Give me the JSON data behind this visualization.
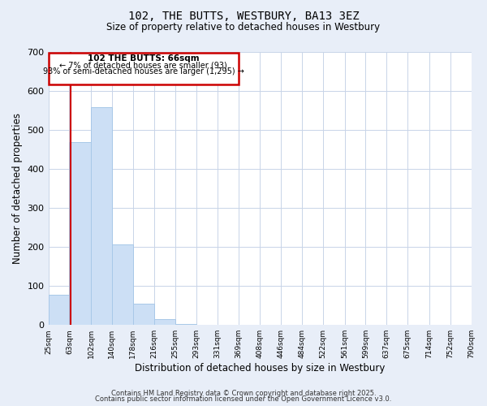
{
  "title": "102, THE BUTTS, WESTBURY, BA13 3EZ",
  "subtitle": "Size of property relative to detached houses in Westbury",
  "xlabel": "Distribution of detached houses by size in Westbury",
  "ylabel": "Number of detached properties",
  "bin_edges": [
    25,
    63,
    102,
    140,
    178,
    216,
    255,
    293,
    331,
    369,
    408,
    446,
    484,
    522,
    561,
    599,
    637,
    675,
    714,
    752,
    790
  ],
  "bar_heights": [
    78,
    468,
    558,
    207,
    55,
    14,
    2,
    0,
    0,
    0,
    0,
    0,
    0,
    0,
    0,
    0,
    0,
    0,
    0,
    0
  ],
  "bar_color": "#ccdff5",
  "bar_edge_color": "#a8c8e8",
  "vline_x": 66,
  "vline_color": "#cc0000",
  "annotation_title": "102 THE BUTTS: 66sqm",
  "annotation_line1": "← 7% of detached houses are smaller (93)",
  "annotation_line2": "93% of semi-detached houses are larger (1,295) →",
  "annotation_box_color": "#cc0000",
  "ylim": [
    0,
    700
  ],
  "yticks": [
    0,
    100,
    200,
    300,
    400,
    500,
    600,
    700
  ],
  "footer1": "Contains HM Land Registry data © Crown copyright and database right 2025.",
  "footer2": "Contains public sector information licensed under the Open Government Licence v3.0.",
  "background_color": "#e8eef8",
  "plot_bg_color": "#ffffff",
  "grid_color": "#c8d4e8"
}
